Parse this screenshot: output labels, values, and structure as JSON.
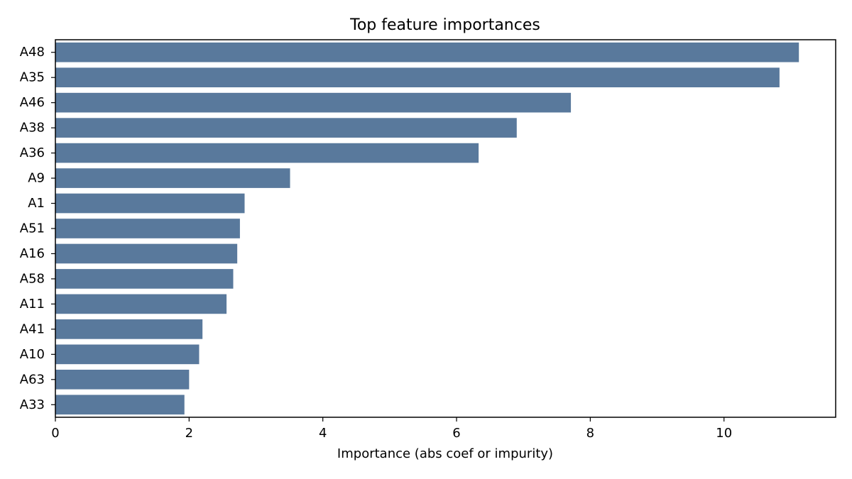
{
  "chart_data": {
    "type": "bar",
    "orientation": "horizontal",
    "title": "Top feature importances",
    "xlabel": "Importance (abs coef or impurity)",
    "ylabel": "",
    "categories": [
      "A48",
      "A35",
      "A46",
      "A38",
      "A36",
      "A9",
      "A1",
      "A51",
      "A16",
      "A58",
      "A11",
      "A41",
      "A10",
      "A63",
      "A33"
    ],
    "values": [
      11.12,
      10.83,
      7.71,
      6.9,
      6.33,
      3.51,
      2.83,
      2.76,
      2.72,
      2.66,
      2.56,
      2.2,
      2.15,
      2.0,
      1.93
    ],
    "xlim": [
      0,
      11.67
    ],
    "xticks": [
      0,
      2,
      4,
      6,
      8,
      10
    ],
    "grid": false,
    "bar_color": "#59799c"
  }
}
